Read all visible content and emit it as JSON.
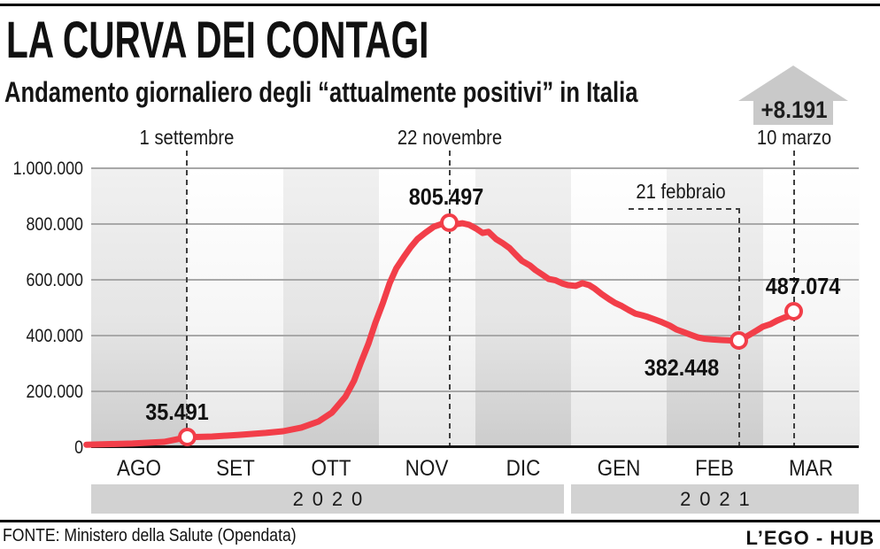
{
  "header": {
    "title": "LA CURVA DEI CONTAGI",
    "subtitle": "Andamento giornaliero degli “attualmente positivi” in Italia"
  },
  "arrow_badge": {
    "delta": "+8.191",
    "color": "#c9c9c9"
  },
  "chart_data": {
    "type": "line",
    "title": "Andamento giornaliero degli attualmente positivi in Italia",
    "line_color": "#f23e49",
    "grid_color": "#a8a8a8",
    "axis_color": "#141414",
    "year_bar_color": "#d2d2d2",
    "ylim": [
      0,
      1000000
    ],
    "grid": true,
    "x_months": [
      "AGO",
      "SET",
      "OTT",
      "NOV",
      "DIC",
      "GEN",
      "FEB",
      "MAR"
    ],
    "y_ticks": [
      {
        "label": "1.000.000",
        "value": 1000000
      },
      {
        "label": "800.000",
        "value": 800000
      },
      {
        "label": "600.000",
        "value": 600000
      },
      {
        "label": "400.000",
        "value": 400000
      },
      {
        "label": "200.000",
        "value": 200000
      },
      {
        "label": "0",
        "value": 0
      }
    ],
    "year_bands": [
      {
        "label": "2020",
        "from_month": 0,
        "to_month": 5
      },
      {
        "label": "2021",
        "from_month": 5,
        "to_month": 8
      }
    ],
    "points": [
      [
        -0.05,
        9000
      ],
      [
        0.2,
        11000
      ],
      [
        0.43,
        13000
      ],
      [
        0.76,
        19000
      ],
      [
        1.0,
        35491
      ],
      [
        1.26,
        38000
      ],
      [
        1.54,
        44000
      ],
      [
        1.82,
        51000
      ],
      [
        2.0,
        57000
      ],
      [
        2.19,
        70000
      ],
      [
        2.37,
        92000
      ],
      [
        2.51,
        124000
      ],
      [
        2.65,
        181000
      ],
      [
        2.74,
        238000
      ],
      [
        2.81,
        302000
      ],
      [
        2.89,
        371000
      ],
      [
        2.96,
        444000
      ],
      [
        3.04,
        517000
      ],
      [
        3.11,
        587000
      ],
      [
        3.18,
        641000
      ],
      [
        3.26,
        683000
      ],
      [
        3.33,
        717000
      ],
      [
        3.4,
        746000
      ],
      [
        3.48,
        768000
      ],
      [
        3.57,
        790000
      ],
      [
        3.66,
        801000
      ],
      [
        3.733,
        805497
      ],
      [
        3.8,
        799000
      ],
      [
        3.87,
        803000
      ],
      [
        3.94,
        797000
      ],
      [
        4.01,
        784000
      ],
      [
        4.08,
        768000
      ],
      [
        4.14,
        772000
      ],
      [
        4.22,
        746000
      ],
      [
        4.29,
        731000
      ],
      [
        4.36,
        714000
      ],
      [
        4.42,
        692000
      ],
      [
        4.49,
        668000
      ],
      [
        4.57,
        652000
      ],
      [
        4.63,
        635000
      ],
      [
        4.7,
        619000
      ],
      [
        4.77,
        603000
      ],
      [
        4.84,
        598000
      ],
      [
        4.91,
        587000
      ],
      [
        4.97,
        581000
      ],
      [
        5.05,
        578000
      ],
      [
        5.12,
        588000
      ],
      [
        5.19,
        581000
      ],
      [
        5.25,
        568000
      ],
      [
        5.32,
        549000
      ],
      [
        5.4,
        530000
      ],
      [
        5.46,
        517000
      ],
      [
        5.53,
        506000
      ],
      [
        5.6,
        492000
      ],
      [
        5.67,
        479000
      ],
      [
        5.74,
        473000
      ],
      [
        5.8,
        467000
      ],
      [
        5.88,
        457000
      ],
      [
        5.95,
        448000
      ],
      [
        6.03,
        436000
      ],
      [
        6.1,
        422000
      ],
      [
        6.17,
        413000
      ],
      [
        6.25,
        403000
      ],
      [
        6.32,
        394000
      ],
      [
        6.39,
        389000
      ],
      [
        6.48,
        386000
      ],
      [
        6.57,
        384000
      ],
      [
        6.65,
        383000
      ],
      [
        6.75,
        382448
      ],
      [
        6.78,
        387000
      ],
      [
        6.86,
        403000
      ],
      [
        6.94,
        419000
      ],
      [
        7.0,
        432000
      ],
      [
        7.08,
        441000
      ],
      [
        7.15,
        454000
      ],
      [
        7.22,
        464000
      ],
      [
        7.27,
        470000
      ],
      [
        7.3226,
        487074
      ]
    ],
    "annotations": [
      {
        "id": "sep",
        "date_label": "1 settembre",
        "value_label": "35.491",
        "month_frac": 1.0,
        "value": 35491
      },
      {
        "id": "nov",
        "date_label": "22 novembre",
        "value_label": "805.497",
        "month_frac": 3.7333,
        "value": 805497
      },
      {
        "id": "feb",
        "date_label": "21 febbraio",
        "value_label": "382.448",
        "month_frac": 6.75,
        "value": 382448
      },
      {
        "id": "mar",
        "date_label": "10 marzo",
        "value_label": "487.074",
        "month_frac": 7.3226,
        "value": 487074
      }
    ]
  },
  "footer": {
    "source": "FONTE: Ministero della Salute (Opendata)",
    "brand": "L’EGO - HUB"
  }
}
